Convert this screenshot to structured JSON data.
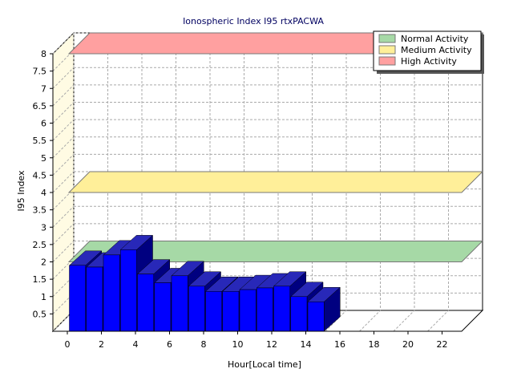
{
  "chart_data": {
    "type": "bar",
    "title": "Ionospheric Index I95 rtxPACWA",
    "xlabel": "Hour[Local time]",
    "ylabel": "I95 Index",
    "x": [
      0,
      1,
      2,
      3,
      4,
      5,
      6,
      7,
      8,
      9,
      10,
      11,
      12,
      13,
      14
    ],
    "values": [
      1.9,
      1.85,
      2.2,
      2.35,
      1.65,
      1.4,
      1.6,
      1.3,
      1.15,
      1.15,
      1.2,
      1.25,
      1.3,
      1.0,
      0.85
    ],
    "xlim": [
      0,
      24
    ],
    "ylim": [
      0,
      8
    ],
    "xticks": [
      "0",
      "2",
      "4",
      "6",
      "8",
      "10",
      "12",
      "14",
      "16",
      "18",
      "20",
      "22"
    ],
    "yticks": [
      "0.5",
      "1",
      "1.5",
      "2",
      "2.5",
      "3",
      "3.5",
      "4",
      "4.5",
      "5",
      "5.5",
      "6",
      "6.5",
      "7",
      "7.5",
      "8"
    ],
    "grid": true,
    "legend_position": "top-right",
    "bar_color": "#0000ff",
    "activity_levels": [
      {
        "name": "Normal Activity",
        "value": 2.0,
        "color": "#a6d9a6"
      },
      {
        "name": "Medium Activity",
        "value": 4.0,
        "color": "#ffef99"
      },
      {
        "name": "High Activity",
        "value": 8.0,
        "color": "#ffa0a0"
      }
    ]
  }
}
